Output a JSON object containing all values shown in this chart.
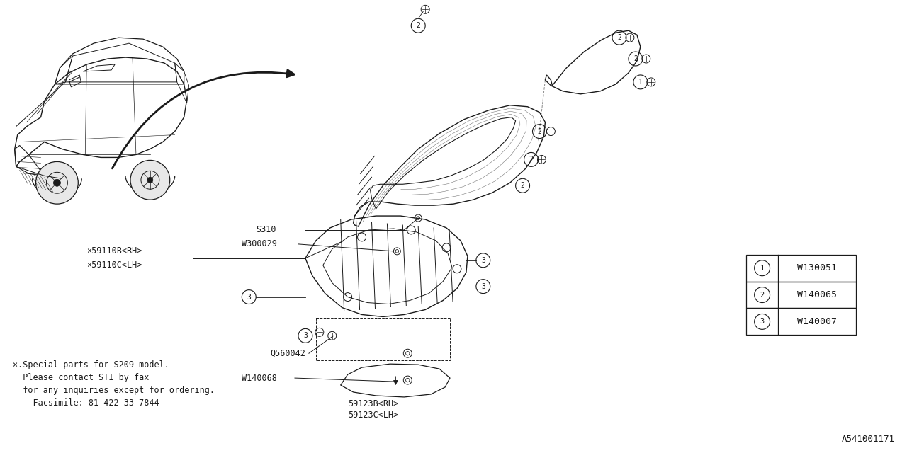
{
  "background_color": "#ffffff",
  "line_color": "#1a1a1a",
  "text_color": "#1a1a1a",
  "legend_items": [
    {
      "num": "1",
      "code": "W130051"
    },
    {
      "num": "2",
      "code": "W140065"
    },
    {
      "num": "3",
      "code": "W140007"
    }
  ],
  "footnote_lines": [
    "×.Special parts for S209 model.",
    "  Please contact STI by fax",
    "  for any inquiries except for ordering.",
    "    Facsimile: 81-422-33-7844"
  ],
  "diagram_id": "A541001171",
  "font_family": "monospace",
  "font_size": 8.5
}
